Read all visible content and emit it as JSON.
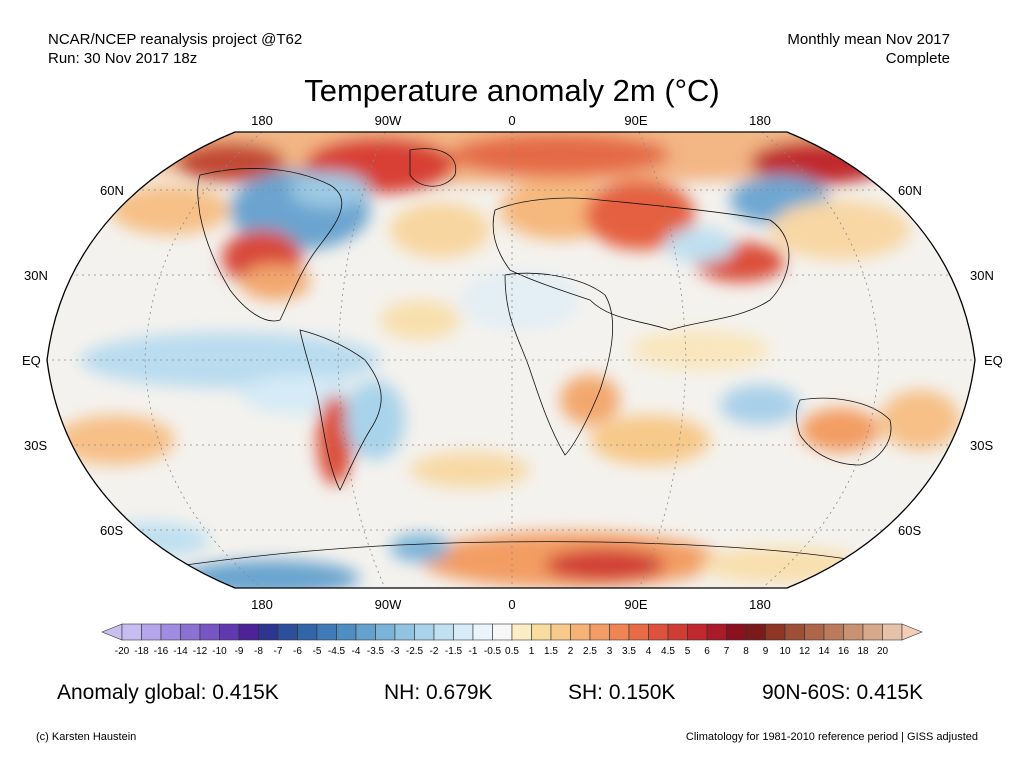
{
  "header": {
    "project_line": "NCAR/NCEP reanalysis project @T62",
    "run_line": "Run: 30 Nov 2017 18z",
    "period_line": "Monthly mean Nov 2017",
    "status_line": "Complete"
  },
  "title": "Temperature anomaly 2m (°C)",
  "map": {
    "top_lon_labels": [
      "180",
      "90W",
      "0",
      "90E",
      "180"
    ],
    "bottom_lon_labels": [
      "180",
      "90W",
      "0",
      "90E",
      "180"
    ],
    "left_lat_labels": [
      "60N",
      "30N",
      "EQ",
      "30S",
      "60S"
    ],
    "right_lat_labels": [
      "60N",
      "30N",
      "EQ",
      "30S",
      "60S"
    ]
  },
  "colorbar": {
    "labels": [
      "-20",
      "-18",
      "-16",
      "-14",
      "-12",
      "-10",
      "-9",
      "-8",
      "-7",
      "-6",
      "-5",
      "-4.5",
      "-4",
      "-3.5",
      "-3",
      "-2.5",
      "-2",
      "-1.5",
      "-1",
      "-0.5",
      "0.5",
      "1",
      "1.5",
      "2",
      "2.5",
      "3",
      "3.5",
      "4",
      "4.5",
      "5",
      "6",
      "7",
      "8",
      "9",
      "10",
      "12",
      "14",
      "16",
      "18",
      "20"
    ],
    "colors": [
      "#c7bdf2",
      "#b5a6ec",
      "#a08ce0",
      "#8c71d3",
      "#7756c4",
      "#6039b0",
      "#4b2396",
      "#2e3590",
      "#2c4f9c",
      "#3366a8",
      "#3f7bb6",
      "#4f8ec2",
      "#64a1cd",
      "#7ab3d8",
      "#92c4e1",
      "#a9d3ea",
      "#c1e1f1",
      "#d7ecf7",
      "#eaf5fb",
      "#f7f7f7",
      "#fbedc4",
      "#f8dca0",
      "#f7c98a",
      "#f5b476",
      "#f39d64",
      "#ee8553",
      "#e66b46",
      "#dc523c",
      "#d03d35",
      "#c02a2e",
      "#a81b28",
      "#8b1020",
      "#7a1a1a",
      "#8e3524",
      "#9e5036",
      "#ad6649",
      "#bb7c5d",
      "#c99272",
      "#d6a98a",
      "#e4c3aa"
    ],
    "min_color": "#c9c0f0",
    "max_color": "#f3cdb8"
  },
  "stats": {
    "global": "Anomaly global: 0.415K",
    "nh": "NH: 0.679K",
    "sh": "SH: 0.150K",
    "arctic": "90N-60S: 0.415K"
  },
  "footer": {
    "credit": "(c) Karsten Haustein",
    "note": "Climatology for 1981-2010 reference period | GISS adjusted"
  }
}
